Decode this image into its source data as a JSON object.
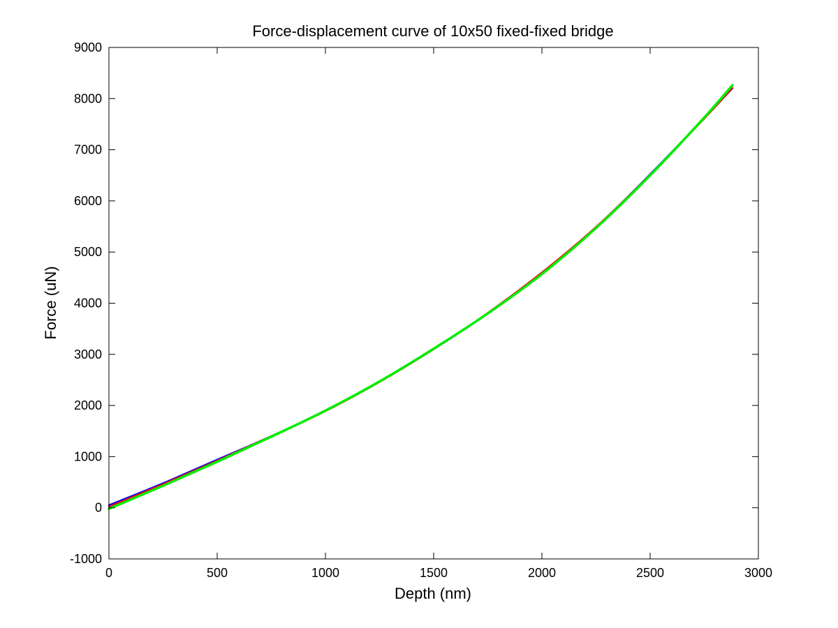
{
  "chart_data": {
    "type": "line",
    "title": "Force-displacement curve of 10x50 fixed-fixed bridge",
    "xlabel": "Depth (nm)",
    "ylabel": "Force (uN)",
    "xlim": [
      0,
      3000
    ],
    "ylim": [
      -1000,
      9000
    ],
    "xticks": [
      "0",
      "500",
      "1000",
      "1500",
      "2000",
      "2500",
      "3000"
    ],
    "yticks": [
      "-1000",
      "0",
      "1000",
      "2000",
      "3000",
      "4000",
      "5000",
      "6000",
      "7000",
      "8000",
      "9000"
    ],
    "grid": false,
    "legend": "none",
    "series": [
      {
        "color": "#0000ff",
        "x": [
          0,
          250,
          500,
          750,
          1000,
          1250,
          1500,
          1750,
          2000,
          2250,
          2500,
          2750,
          2880
        ],
        "y": [
          50,
          480,
          940,
          1400,
          1900,
          2470,
          3100,
          3800,
          4580,
          5480,
          6520,
          7620,
          8200
        ]
      },
      {
        "color": "#ff0000",
        "x": [
          0,
          250,
          500,
          750,
          1000,
          1250,
          1500,
          1750,
          2000,
          2250,
          2500,
          2750,
          2880
        ],
        "y": [
          20,
          460,
          920,
          1400,
          1890,
          2460,
          3100,
          3810,
          4600,
          5490,
          6510,
          7610,
          8210
        ]
      },
      {
        "color": "#00ee00",
        "x": [
          0,
          250,
          500,
          750,
          1000,
          1250,
          1500,
          1750,
          2000,
          2250,
          2500,
          2750,
          2880
        ],
        "y": [
          -20,
          430,
          900,
          1390,
          1900,
          2470,
          3110,
          3800,
          4570,
          5470,
          6500,
          7630,
          8260
        ]
      }
    ]
  }
}
